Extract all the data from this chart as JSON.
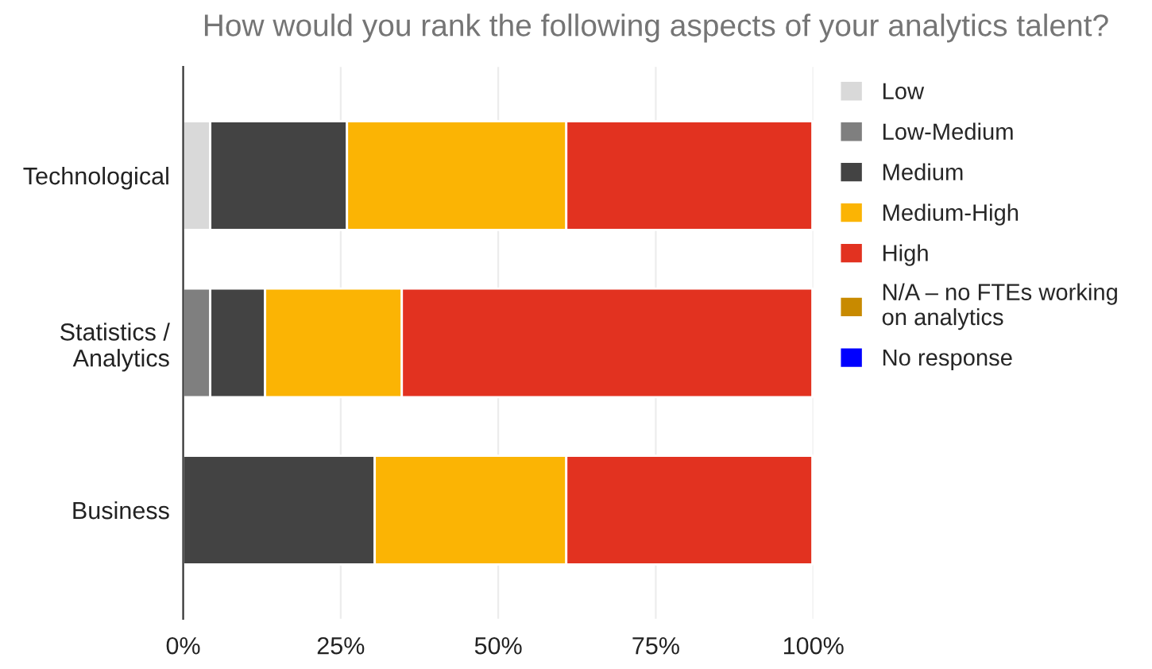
{
  "chart_data": {
    "type": "bar",
    "orientation": "horizontal",
    "stacked": true,
    "title": "How would you rank the following aspects of your analytics talent?",
    "categories": [
      "Technological",
      "Statistics /\nAnalytics",
      "Business"
    ],
    "series": [
      {
        "name": "Low",
        "color": "#d9d9d9",
        "values": [
          4.3,
          0,
          0
        ]
      },
      {
        "name": "Low-Medium",
        "color": "#7f7f7f",
        "values": [
          0,
          4.3,
          0
        ]
      },
      {
        "name": "Medium",
        "color": "#434343",
        "values": [
          21.7,
          8.7,
          30.4
        ]
      },
      {
        "name": "Medium-High",
        "color": "#fbb404",
        "values": [
          34.8,
          21.7,
          30.4
        ]
      },
      {
        "name": "High",
        "color": "#e23220",
        "values": [
          39.1,
          65.2,
          39.1
        ]
      },
      {
        "name": "N/A – no FTEs working\non analytics",
        "color": "#c88a00",
        "values": [
          0,
          0,
          0
        ]
      },
      {
        "name": "No response",
        "color": "#0000ff",
        "values": [
          0,
          0,
          0
        ]
      }
    ],
    "xlim": [
      0,
      100
    ],
    "xticks": [
      {
        "value": 0,
        "label": "0%"
      },
      {
        "value": 25,
        "label": "25%"
      },
      {
        "value": 50,
        "label": "50%"
      },
      {
        "value": 75,
        "label": "75%"
      },
      {
        "value": 100,
        "label": "100%"
      }
    ],
    "grid": "x",
    "legend": "top right"
  }
}
